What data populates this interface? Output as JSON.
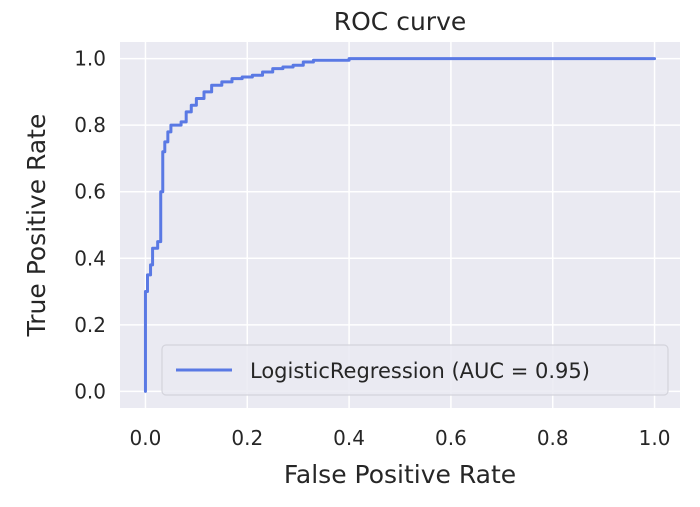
{
  "chart_data": {
    "type": "line",
    "title": "ROC curve",
    "xlabel": "False Positive Rate",
    "ylabel": "True Positive Rate",
    "xlim": [
      -0.05,
      1.05
    ],
    "ylim": [
      -0.05,
      1.05
    ],
    "xticks": [
      0.0,
      0.2,
      0.4,
      0.6,
      0.8,
      1.0
    ],
    "yticks": [
      0.0,
      0.2,
      0.4,
      0.6,
      0.8,
      1.0
    ],
    "xtick_labels": [
      "0.0",
      "0.2",
      "0.4",
      "0.6",
      "0.8",
      "1.0"
    ],
    "ytick_labels": [
      "0.0",
      "0.2",
      "0.4",
      "0.6",
      "0.8",
      "1.0"
    ],
    "grid": true,
    "legend_position": "lower-right",
    "background_color": "#eaeaf2",
    "grid_color": "#ffffff",
    "series": [
      {
        "name": "LogisticRegression (AUC = 0.95)",
        "color": "#5a79e4",
        "x": [
          0.0,
          0.0,
          0.0,
          0.004,
          0.004,
          0.01,
          0.01,
          0.014,
          0.014,
          0.024,
          0.024,
          0.03,
          0.03,
          0.034,
          0.034,
          0.038,
          0.038,
          0.044,
          0.044,
          0.05,
          0.05,
          0.07,
          0.07,
          0.08,
          0.08,
          0.09,
          0.09,
          0.1,
          0.1,
          0.115,
          0.115,
          0.13,
          0.13,
          0.15,
          0.15,
          0.17,
          0.17,
          0.19,
          0.19,
          0.21,
          0.21,
          0.23,
          0.23,
          0.25,
          0.25,
          0.27,
          0.27,
          0.29,
          0.29,
          0.31,
          0.31,
          0.33,
          0.33,
          0.4,
          0.4,
          1.0
        ],
        "y": [
          0.0,
          0.2,
          0.3,
          0.3,
          0.35,
          0.35,
          0.38,
          0.38,
          0.43,
          0.43,
          0.45,
          0.45,
          0.6,
          0.6,
          0.72,
          0.72,
          0.75,
          0.75,
          0.78,
          0.78,
          0.8,
          0.8,
          0.81,
          0.81,
          0.84,
          0.84,
          0.86,
          0.86,
          0.88,
          0.88,
          0.9,
          0.9,
          0.92,
          0.92,
          0.93,
          0.93,
          0.94,
          0.94,
          0.945,
          0.945,
          0.95,
          0.95,
          0.96,
          0.96,
          0.97,
          0.97,
          0.975,
          0.975,
          0.98,
          0.98,
          0.99,
          0.99,
          0.995,
          0.995,
          1.0,
          1.0
        ]
      }
    ]
  }
}
